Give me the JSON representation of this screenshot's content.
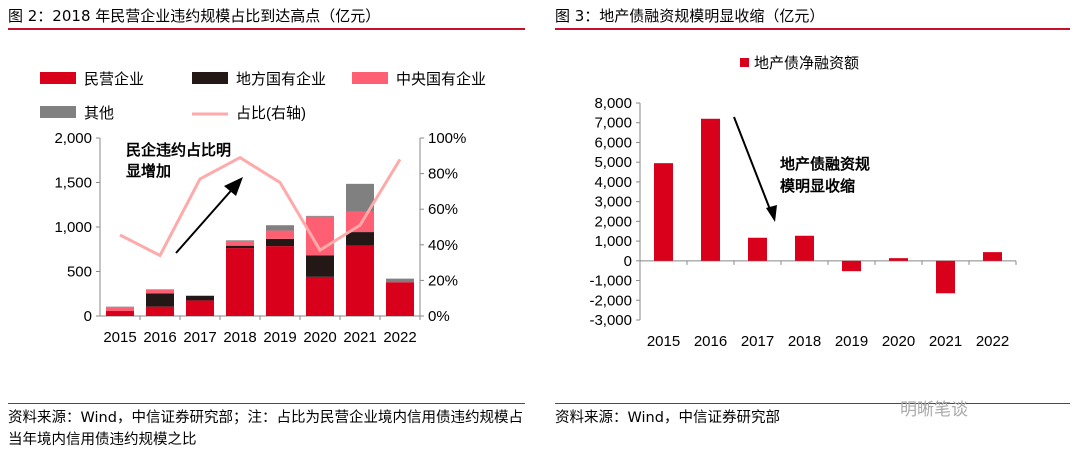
{
  "charts": [
    {
      "title": "图 2：2018 年民营企业违约规模占比到达高点（亿元）",
      "source": "资料来源：Wind，中信证券研究部；注：占比为民营企业境内信用债违约规模占当年境内信用债违约规模之比"
    },
    {
      "title": "图 3：地产债融资规模明显收缩（亿元）",
      "source": "资料来源：Wind，中信证券研究部"
    }
  ],
  "watermark": "明晰笔谈",
  "chart_data": [
    {
      "type": "bar",
      "stacked": true,
      "categories": [
        "2015",
        "2016",
        "2017",
        "2018",
        "2019",
        "2020",
        "2021",
        "2022"
      ],
      "series": [
        {
          "name": "民营企业",
          "color": "#d9001b",
          "values": [
            56,
            105,
            175,
            763,
            785,
            440,
            790,
            380
          ]
        },
        {
          "name": "地方国有企业",
          "color": "#231815",
          "values": [
            0,
            150,
            50,
            27,
            82,
            240,
            153,
            0
          ]
        },
        {
          "name": "中央国有企业",
          "color": "#ff5f73",
          "values": [
            44,
            45,
            0,
            45,
            93,
            435,
            227,
            0
          ]
        },
        {
          "name": "其他",
          "color": "#808080",
          "values": [
            5,
            0,
            5,
            15,
            60,
            10,
            315,
            40
          ]
        }
      ],
      "line": {
        "name": "占比(右轴)",
        "color": "#ffaaaa",
        "values": [
          45.5,
          34,
          77,
          89,
          75,
          37,
          51,
          88
        ]
      },
      "yticks": [
        "0",
        "500",
        "1,000",
        "1,500",
        "2,000"
      ],
      "ylim": [
        0,
        2000
      ],
      "y2ticks": [
        "0%",
        "20%",
        "40%",
        "60%",
        "80%",
        "100%"
      ],
      "y2lim": [
        0,
        100
      ],
      "annotation": [
        "民企违约占比明",
        "显增加"
      ],
      "legend": "top"
    },
    {
      "type": "bar",
      "categories": [
        "2015",
        "2016",
        "2017",
        "2018",
        "2019",
        "2020",
        "2021",
        "2022"
      ],
      "series": [
        {
          "name": "地产债净融资额",
          "color": "#d9001b",
          "values": [
            4950,
            7200,
            1170,
            1270,
            -525,
            135,
            -1645,
            440
          ]
        }
      ],
      "yticks": [
        "-3,000",
        "-2,000",
        "-1,000",
        "0",
        "1,000",
        "2,000",
        "3,000",
        "4,000",
        "5,000",
        "6,000",
        "7,000",
        "8,000"
      ],
      "ylim": [
        -3000,
        8000
      ],
      "annotation": [
        "地产债融资规",
        "模明显收缩"
      ],
      "legend": "top"
    }
  ]
}
